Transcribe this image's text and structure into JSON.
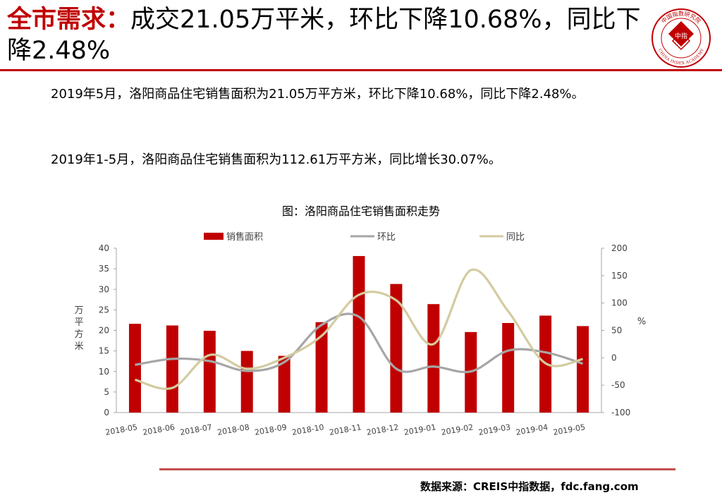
{
  "header": {
    "key": "全市需求：",
    "text": "成交21.05万平米，环比下降10.68%，同比下降2.48%"
  },
  "logo": {
    "text_top": "中国指数研究院",
    "text_bottom": "CHINA INDEX ACADEMY",
    "center": "中指",
    "color": "#c00000",
    "icon": "academy-seal-icon"
  },
  "body": {
    "p1": "2019年5月，洛阳商品住宅销售面积为21.05万平方米，环比下降10.68%，同比下降2.48%。",
    "p2": "2019年1-5月，洛阳商品住宅销售面积为112.61万平方米，同比增长30.07%。"
  },
  "chart_data": {
    "type": "bar",
    "title": "图：洛阳商品住宅销售面积走势",
    "categories": [
      "2018-05",
      "2018-06",
      "2018-07",
      "2018-08",
      "2018-09",
      "2018-10",
      "2018-11",
      "2018-12",
      "2019-01",
      "2019-02",
      "2019-03",
      "2019-04",
      "2019-05"
    ],
    "series": [
      {
        "name": "销售面积",
        "type": "bar",
        "axis": "left",
        "color": "#c00000",
        "values": [
          21.6,
          21.2,
          19.9,
          15.0,
          13.8,
          22.0,
          38.1,
          31.3,
          26.4,
          19.6,
          21.8,
          23.6,
          21.05
        ]
      },
      {
        "name": "环比",
        "type": "line",
        "axis": "right",
        "color": "#a6a6a6",
        "values": [
          -13,
          -2,
          -6,
          -24,
          -8,
          60,
          75,
          -20,
          -16,
          -25,
          13,
          10,
          -10.68
        ]
      },
      {
        "name": "同比",
        "type": "line",
        "axis": "right",
        "color": "#d3cba0",
        "values": [
          -40,
          -55,
          5,
          -20,
          0,
          40,
          115,
          105,
          25,
          160,
          85,
          -10,
          -2.48
        ]
      }
    ],
    "ylabel": "万平方米",
    "ylim": [
      0,
      40
    ],
    "yticks": [
      "0",
      "5",
      "10",
      "15",
      "20",
      "25",
      "30",
      "35",
      "40"
    ],
    "y2label": "%",
    "y2lim": [
      -100,
      200
    ],
    "y2ticks": [
      "-100",
      "-50",
      "0",
      "50",
      "100",
      "150",
      "200"
    ],
    "legend_position": "top",
    "grid": false
  },
  "source": "数据来源：CREIS中指数据，fdc.fang.com",
  "colors": {
    "accent": "#c00000",
    "rule": "#c0504d"
  }
}
